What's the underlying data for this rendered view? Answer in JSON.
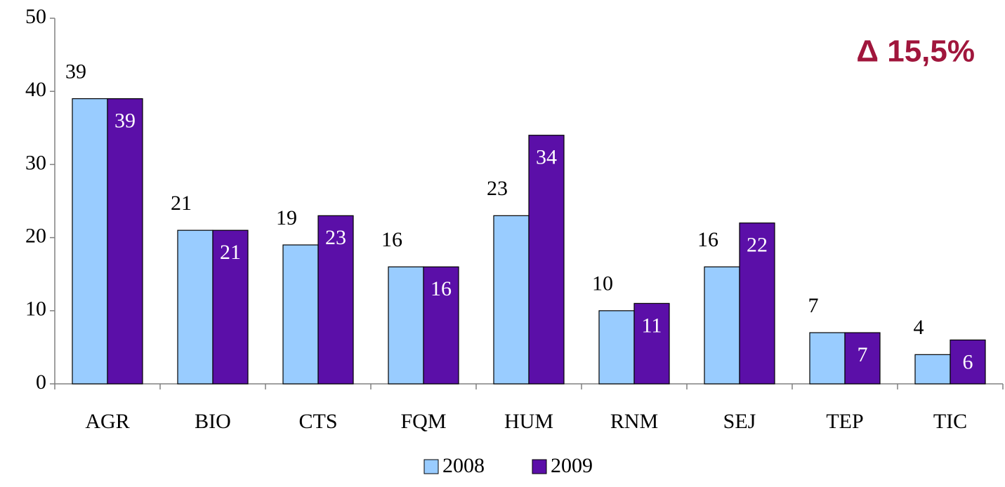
{
  "chart_data": {
    "type": "bar",
    "annotation": "Δ 15,5%",
    "categories": [
      "AGR",
      "BIO",
      "CTS",
      "FQM",
      "HUM",
      "RNM",
      "SEJ",
      "TEP",
      "TIC"
    ],
    "series": [
      {
        "name": "2008",
        "color": "#99ccff",
        "values": [
          39,
          21,
          19,
          16,
          23,
          10,
          16,
          7,
          4
        ]
      },
      {
        "name": "2009",
        "color": "#5b0fa8",
        "values": [
          39,
          21,
          23,
          16,
          34,
          11,
          22,
          7,
          6
        ]
      }
    ],
    "ylim": [
      0,
      50
    ],
    "yticks": [
      0,
      10,
      20,
      30,
      40,
      50
    ],
    "grid": false,
    "legend": "bottom"
  }
}
